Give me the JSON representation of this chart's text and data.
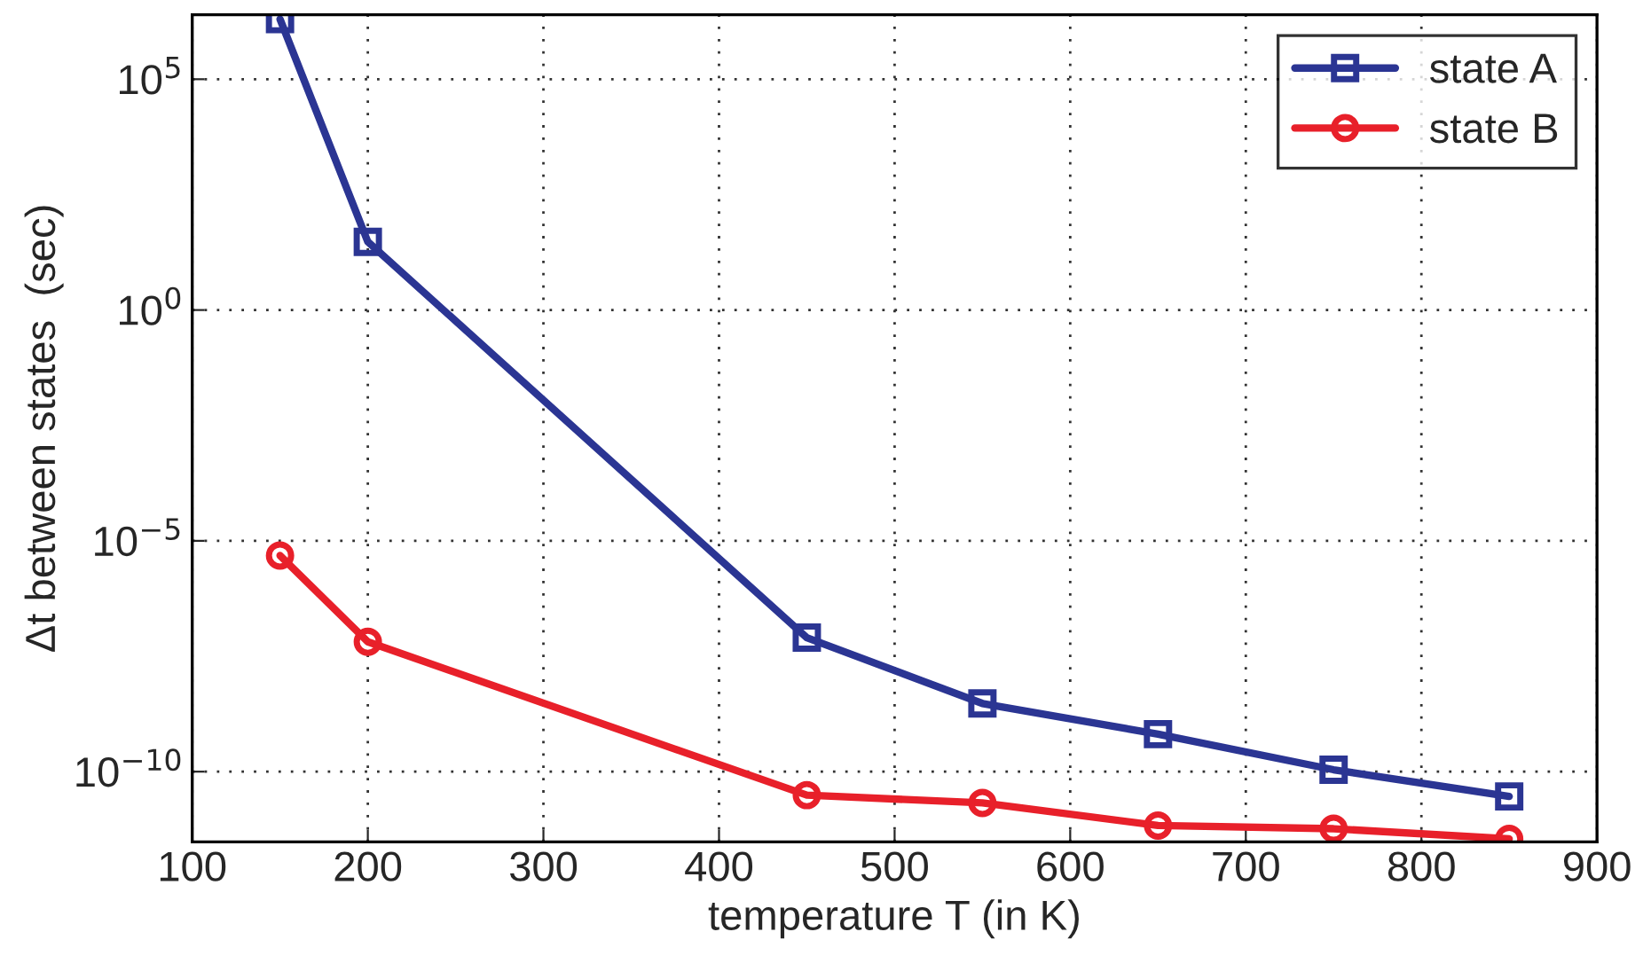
{
  "chart_data": {
    "type": "line",
    "xlabel": "temperature T (in K)",
    "ylabel": "Δt between states  (sec)",
    "x": [
      150,
      200,
      450,
      550,
      650,
      750,
      850
    ],
    "series": [
      {
        "name": "state A",
        "color": "#2b3593",
        "marker": "square",
        "values": [
          2000000.0,
          30,
          8e-08,
          3e-09,
          6.5e-10,
          1.1e-10,
          2.9e-11
        ]
      },
      {
        "name": "state B",
        "color": "#e8202a",
        "marker": "circle",
        "values": [
          4.8e-06,
          6.5e-08,
          3.1e-11,
          2.1e-11,
          6.8e-12,
          5.8e-12,
          3.5e-12
        ]
      }
    ],
    "log": "y",
    "xlim": [
      100,
      900
    ],
    "xticks": [
      100,
      200,
      300,
      400,
      500,
      600,
      700,
      800,
      900
    ],
    "ylim": [
      3e-12,
      2500000.0
    ],
    "yticks": [
      {
        "value": 1e-10,
        "label": "10$^{−10}$"
      },
      {
        "value": 1e-05,
        "label": "10$^{−5}$"
      },
      {
        "value": 1,
        "label": "10$^{0}$"
      },
      {
        "value": 100000.0,
        "label": "10$^{5}$"
      }
    ],
    "grid": true,
    "legend": "top right",
    "line_style": "solid"
  }
}
